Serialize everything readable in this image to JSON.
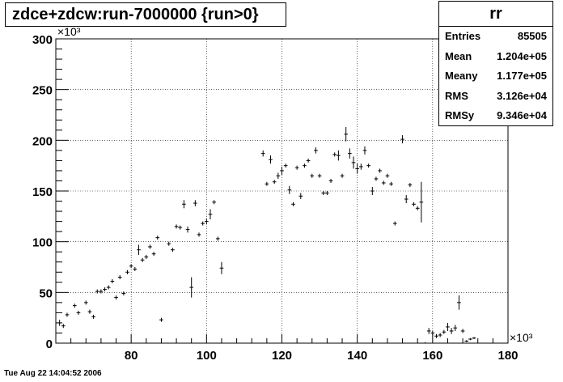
{
  "title": "zdce+zdcw:run-7000000 {run>0}",
  "stats": {
    "name": "rr",
    "rows": [
      {
        "key": "Entries",
        "value": "85505"
      },
      {
        "key": "Mean",
        "value": "1.204e+05"
      },
      {
        "key": "Meany",
        "value": "1.177e+05"
      },
      {
        "key": "RMS",
        "value": "3.126e+04"
      },
      {
        "key": "RMSy",
        "value": "9.346e+04"
      }
    ]
  },
  "footer": "Tue Aug 22 14:04:52 2006",
  "chart_data": {
    "type": "scatter",
    "title": "zdce+zdcw:run-7000000 {run>0}",
    "xlabel": "",
    "ylabel": "",
    "x_scale_label": "×10³",
    "y_scale_label": "×10³",
    "xlim": [
      60,
      180
    ],
    "ylim": [
      0,
      300
    ],
    "xticks": [
      80,
      100,
      120,
      140,
      160,
      180
    ],
    "yticks": [
      0,
      50,
      100,
      150,
      200,
      250,
      300
    ],
    "grid": true,
    "points": [
      {
        "x": 61,
        "y": 20,
        "ey": 3
      },
      {
        "x": 62,
        "y": 17,
        "ey": 2
      },
      {
        "x": 63,
        "y": 28,
        "ey": 2
      },
      {
        "x": 65,
        "y": 37,
        "ey": 2
      },
      {
        "x": 66,
        "y": 30,
        "ey": 2
      },
      {
        "x": 68,
        "y": 40,
        "ey": 2
      },
      {
        "x": 69,
        "y": 31,
        "ey": 2
      },
      {
        "x": 70,
        "y": 26,
        "ey": 2
      },
      {
        "x": 71,
        "y": 51,
        "ey": 2
      },
      {
        "x": 72,
        "y": 51,
        "ey": 2
      },
      {
        "x": 73,
        "y": 53,
        "ey": 2
      },
      {
        "x": 74,
        "y": 55,
        "ey": 2
      },
      {
        "x": 75,
        "y": 61,
        "ey": 2
      },
      {
        "x": 76,
        "y": 45,
        "ey": 2
      },
      {
        "x": 77,
        "y": 65,
        "ey": 2
      },
      {
        "x": 78,
        "y": 49,
        "ey": 2
      },
      {
        "x": 79,
        "y": 70,
        "ey": 2
      },
      {
        "x": 80,
        "y": 76,
        "ey": 2
      },
      {
        "x": 81,
        "y": 73,
        "ey": 2
      },
      {
        "x": 82,
        "y": 92,
        "ey": 5
      },
      {
        "x": 83,
        "y": 82,
        "ey": 2
      },
      {
        "x": 84,
        "y": 85,
        "ey": 2
      },
      {
        "x": 85,
        "y": 95,
        "ey": 2
      },
      {
        "x": 86,
        "y": 88,
        "ey": 2
      },
      {
        "x": 87,
        "y": 104,
        "ey": 2
      },
      {
        "x": 88,
        "y": 23,
        "ey": 2
      },
      {
        "x": 90,
        "y": 98,
        "ey": 2
      },
      {
        "x": 91,
        "y": 92,
        "ey": 2
      },
      {
        "x": 92,
        "y": 115,
        "ey": 2
      },
      {
        "x": 93,
        "y": 114,
        "ey": 2
      },
      {
        "x": 94,
        "y": 137,
        "ey": 4
      },
      {
        "x": 95,
        "y": 112,
        "ey": 3
      },
      {
        "x": 96,
        "y": 55,
        "ey": 10
      },
      {
        "x": 97,
        "y": 138,
        "ey": 3
      },
      {
        "x": 98,
        "y": 107,
        "ey": 2
      },
      {
        "x": 99,
        "y": 118,
        "ey": 2
      },
      {
        "x": 100,
        "y": 120,
        "ey": 3
      },
      {
        "x": 101,
        "y": 127,
        "ey": 5
      },
      {
        "x": 102,
        "y": 139,
        "ey": 2
      },
      {
        "x": 103,
        "y": 103,
        "ey": 2
      },
      {
        "x": 104,
        "y": 74,
        "ey": 6
      },
      {
        "x": 115,
        "y": 187,
        "ey": 3
      },
      {
        "x": 116,
        "y": 157,
        "ey": 2
      },
      {
        "x": 117,
        "y": 181,
        "ey": 4
      },
      {
        "x": 118,
        "y": 159,
        "ey": 2
      },
      {
        "x": 119,
        "y": 165,
        "ey": 3
      },
      {
        "x": 120,
        "y": 170,
        "ey": 4
      },
      {
        "x": 121,
        "y": 175,
        "ey": 2
      },
      {
        "x": 122,
        "y": 151,
        "ey": 4
      },
      {
        "x": 123,
        "y": 137,
        "ey": 2
      },
      {
        "x": 124,
        "y": 173,
        "ey": 2
      },
      {
        "x": 125,
        "y": 145,
        "ey": 3
      },
      {
        "x": 126,
        "y": 175,
        "ey": 2
      },
      {
        "x": 127,
        "y": 180,
        "ey": 2
      },
      {
        "x": 128,
        "y": 165,
        "ey": 2
      },
      {
        "x": 129,
        "y": 190,
        "ey": 3
      },
      {
        "x": 130,
        "y": 165,
        "ey": 2
      },
      {
        "x": 131,
        "y": 148,
        "ey": 2
      },
      {
        "x": 132,
        "y": 148,
        "ey": 2
      },
      {
        "x": 133,
        "y": 160,
        "ey": 2
      },
      {
        "x": 134,
        "y": 186,
        "ey": 2
      },
      {
        "x": 135,
        "y": 185,
        "ey": 5
      },
      {
        "x": 136,
        "y": 165,
        "ey": 2
      },
      {
        "x": 137,
        "y": 206,
        "ey": 7
      },
      {
        "x": 138,
        "y": 187,
        "ey": 5
      },
      {
        "x": 139,
        "y": 178,
        "ey": 6
      },
      {
        "x": 140,
        "y": 172,
        "ey": 5
      },
      {
        "x": 141,
        "y": 174,
        "ey": 3
      },
      {
        "x": 142,
        "y": 190,
        "ey": 4
      },
      {
        "x": 143,
        "y": 175,
        "ey": 2
      },
      {
        "x": 144,
        "y": 150,
        "ey": 4
      },
      {
        "x": 145,
        "y": 162,
        "ey": 2
      },
      {
        "x": 146,
        "y": 170,
        "ey": 2
      },
      {
        "x": 147,
        "y": 158,
        "ey": 2
      },
      {
        "x": 148,
        "y": 165,
        "ey": 2
      },
      {
        "x": 149,
        "y": 157,
        "ey": 2
      },
      {
        "x": 150,
        "y": 118,
        "ey": 2
      },
      {
        "x": 152,
        "y": 201,
        "ey": 4
      },
      {
        "x": 153,
        "y": 142,
        "ey": 4
      },
      {
        "x": 154,
        "y": 156,
        "ey": 2
      },
      {
        "x": 155,
        "y": 137,
        "ey": 2
      },
      {
        "x": 156,
        "y": 133,
        "ey": 2
      },
      {
        "x": 157,
        "y": 139,
        "ey": 20
      },
      {
        "x": 158,
        "y": 0,
        "ey": 1
      },
      {
        "x": 159,
        "y": 12,
        "ey": 3
      },
      {
        "x": 160,
        "y": 10,
        "ey": 2
      },
      {
        "x": 161,
        "y": 7,
        "ey": 2
      },
      {
        "x": 162,
        "y": 8,
        "ey": 2
      },
      {
        "x": 163,
        "y": 11,
        "ey": 2
      },
      {
        "x": 164,
        "y": 16,
        "ey": 4
      },
      {
        "x": 165,
        "y": 12,
        "ey": 3
      },
      {
        "x": 166,
        "y": 15,
        "ey": 3
      },
      {
        "x": 167,
        "y": 40,
        "ey": 7
      },
      {
        "x": 168,
        "y": 12,
        "ey": 2
      },
      {
        "x": 169,
        "y": 2,
        "ey": 1
      },
      {
        "x": 170,
        "y": 4,
        "ey": 1
      },
      {
        "x": 171,
        "y": 5,
        "ey": 1
      }
    ]
  }
}
